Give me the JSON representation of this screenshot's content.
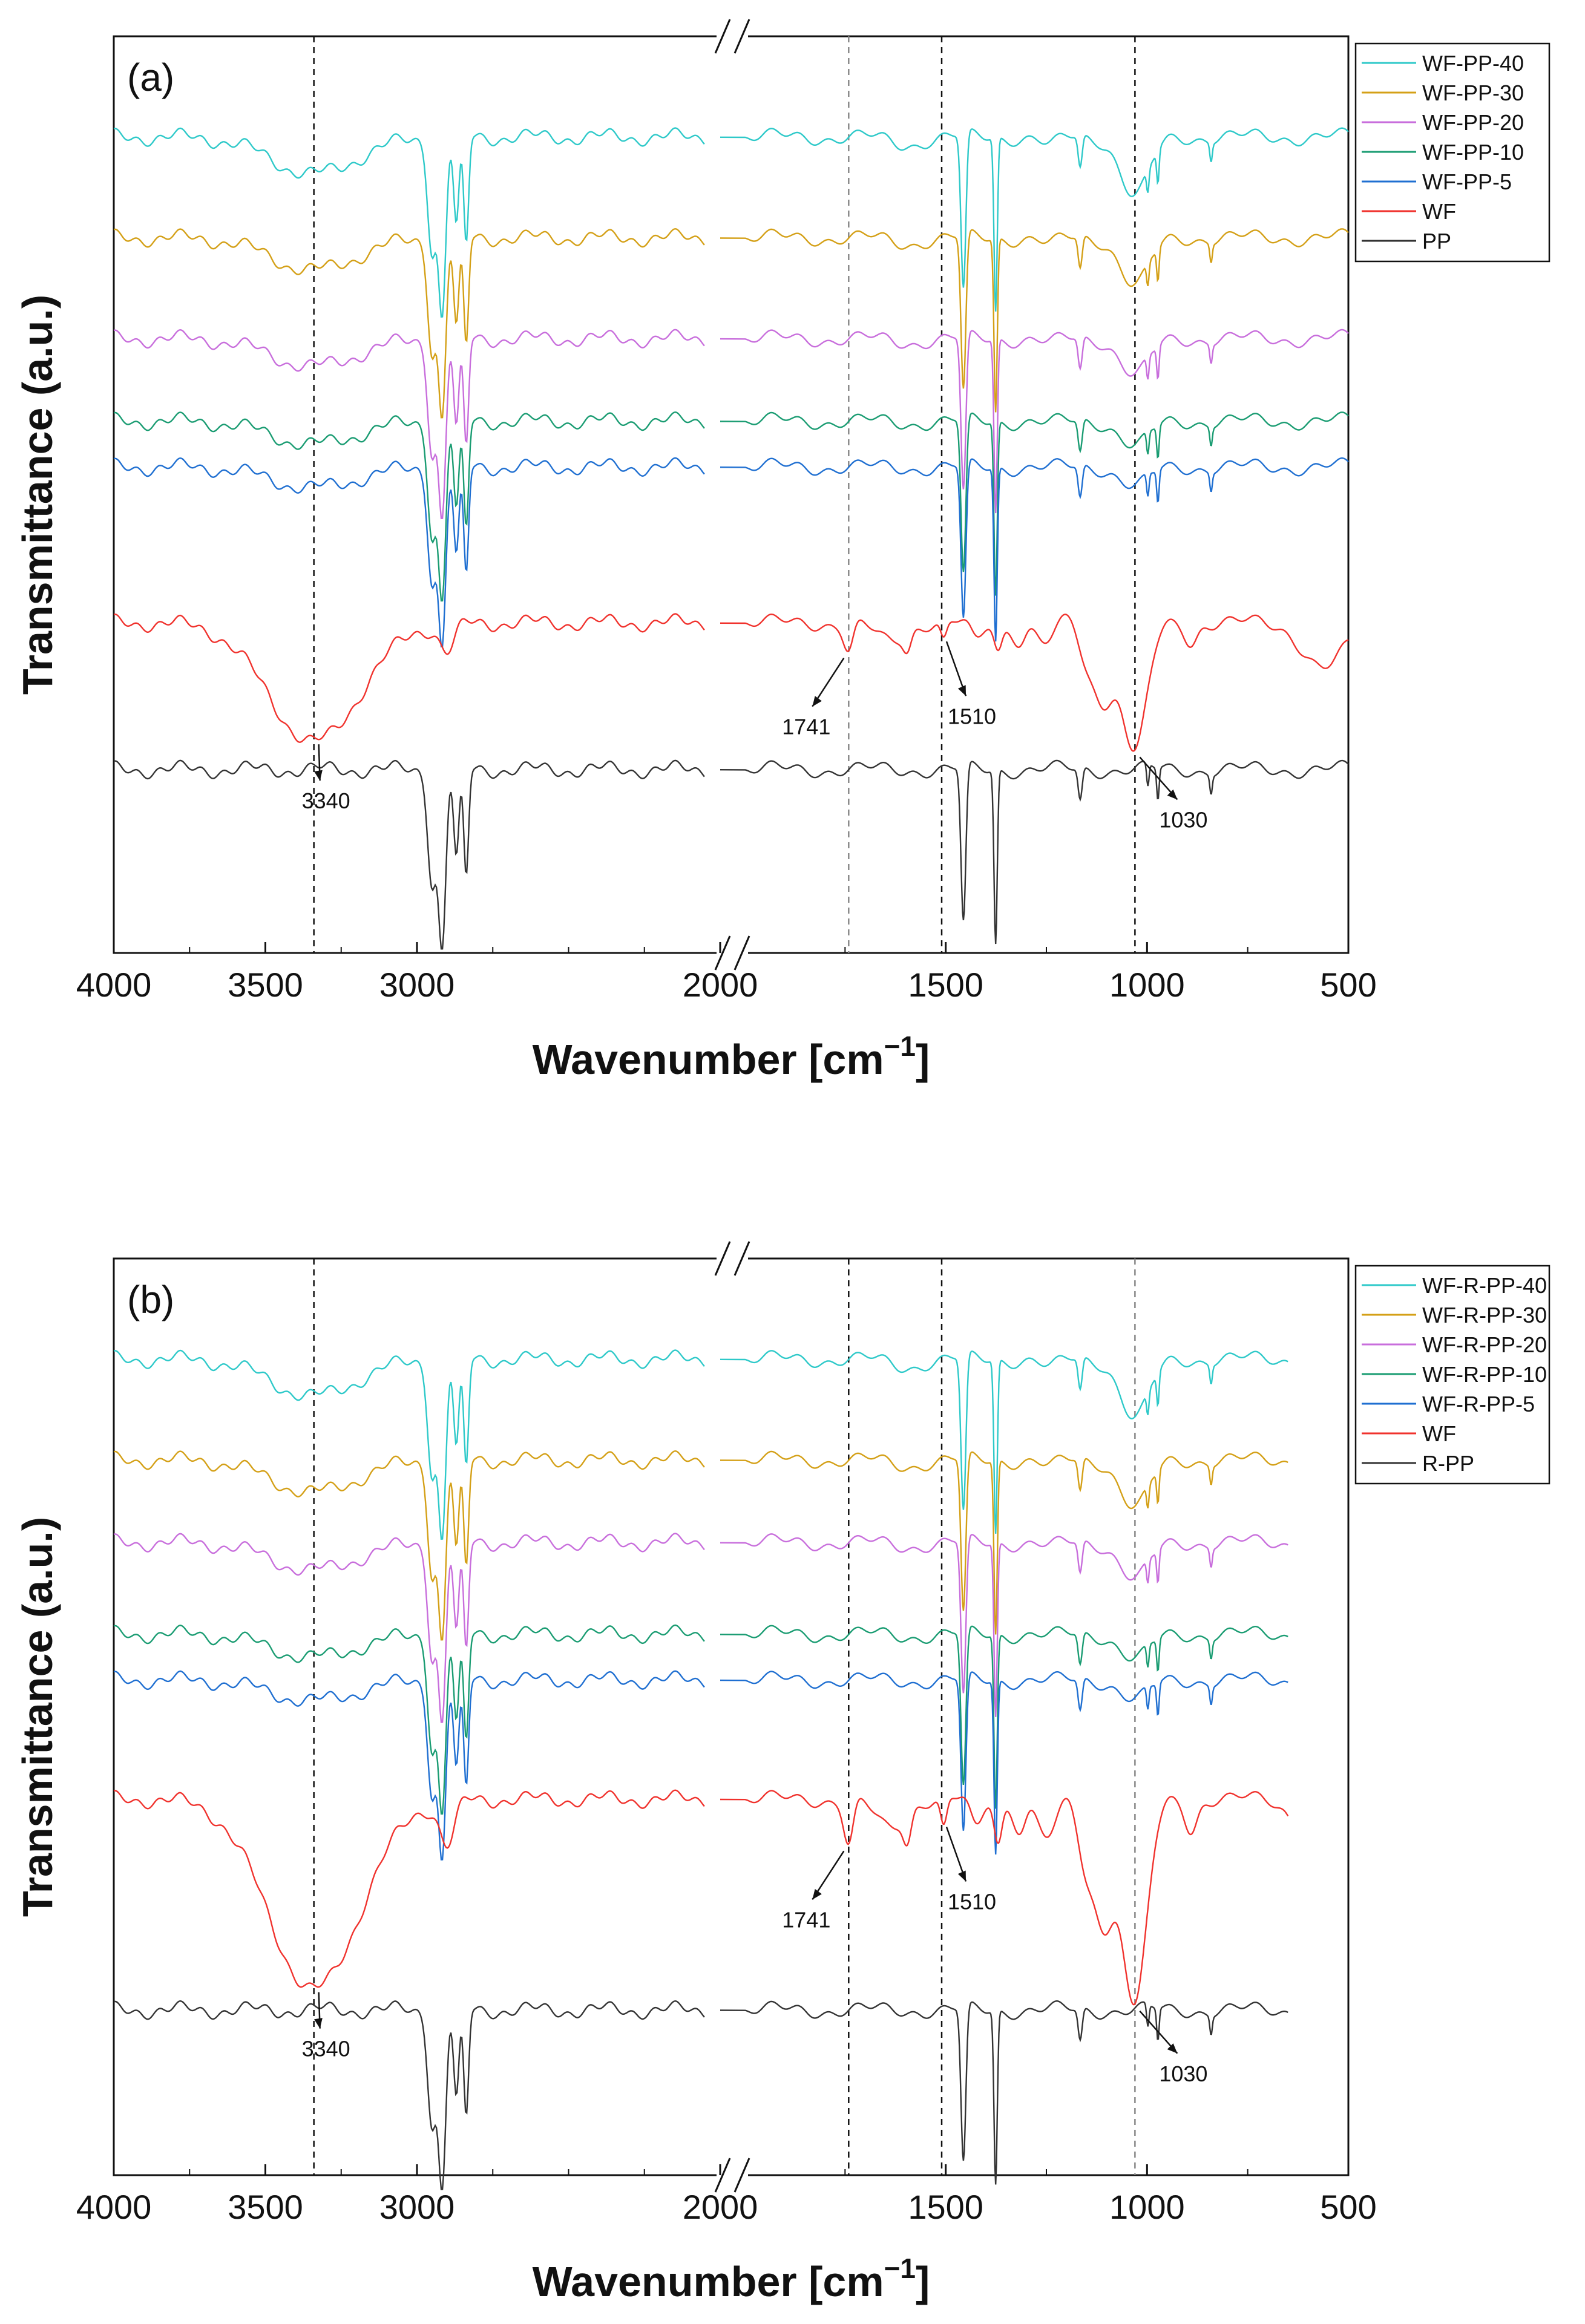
{
  "chart_data": [
    {
      "type": "line",
      "panel_label": "(a)",
      "xlabel": "Wavenumber [cm",
      "xlabel_exponent": "−1",
      "xlabel_close": "]",
      "ylabel": "Transmittance (a.u.)",
      "x_axis_reversed": true,
      "x_breaks": [
        2050,
        2000
      ],
      "x_segments": [
        [
          4000,
          2000
        ],
        [
          2000,
          500
        ]
      ],
      "xticks": [
        4000,
        3500,
        3000,
        2000,
        1500,
        1000,
        500
      ],
      "xtick_labels": [
        "4000",
        "3500",
        "3000",
        "2000",
        "1500",
        "1000",
        "500"
      ],
      "reference_lines": [
        3340,
        1741,
        1510,
        1030
      ],
      "legend_position": "top-right, outside",
      "series": [
        {
          "name": "WF-PP-40",
          "color": "#2ec9c9",
          "baseline": 0.89,
          "x_end": 500
        },
        {
          "name": "WF-PP-30",
          "color": "#d4a017",
          "baseline": 0.78,
          "x_end": 500
        },
        {
          "name": "WF-PP-20",
          "color": "#c86edc",
          "baseline": 0.67,
          "x_end": 500
        },
        {
          "name": "WF-PP-10",
          "color": "#1a9c72",
          "baseline": 0.58,
          "x_end": 500
        },
        {
          "name": "WF-PP-5",
          "color": "#1f6fd1",
          "baseline": 0.53,
          "x_end": 500
        },
        {
          "name": "WF",
          "color": "#f0322d",
          "baseline": 0.36,
          "x_end": 500
        },
        {
          "name": "PP",
          "color": "#333333",
          "baseline": 0.2,
          "x_end": 500
        }
      ],
      "annotations": [
        {
          "text": "3340",
          "x": 3340
        },
        {
          "text": "1741",
          "x": 1741
        },
        {
          "text": "1510",
          "x": 1510
        },
        {
          "text": "1030",
          "x": 1030
        }
      ]
    },
    {
      "type": "line",
      "panel_label": "(b)",
      "xlabel": "Wavenumber [cm",
      "xlabel_exponent": "−1",
      "xlabel_close": "]",
      "ylabel": "Transmittance (a.u.)",
      "x_axis_reversed": true,
      "x_breaks": [
        2050,
        2000
      ],
      "x_segments": [
        [
          4000,
          2000
        ],
        [
          2000,
          500
        ]
      ],
      "xticks": [
        4000,
        3500,
        3000,
        2000,
        1500,
        1000,
        500
      ],
      "xtick_labels": [
        "4000",
        "3500",
        "3000",
        "2000",
        "1500",
        "1000",
        "500"
      ],
      "reference_lines": [
        3340,
        1741,
        1510,
        1030
      ],
      "legend_position": "top-right, outside",
      "series": [
        {
          "name": "WF-R-PP-40",
          "color": "#2ec9c9",
          "baseline": 0.89,
          "x_end": 650
        },
        {
          "name": "WF-R-PP-30",
          "color": "#d4a017",
          "baseline": 0.78,
          "x_end": 650
        },
        {
          "name": "WF-R-PP-20",
          "color": "#c86edc",
          "baseline": 0.69,
          "x_end": 650
        },
        {
          "name": "WF-R-PP-10",
          "color": "#1a9c72",
          "baseline": 0.59,
          "x_end": 650
        },
        {
          "name": "WF-R-PP-5",
          "color": "#1f6fd1",
          "baseline": 0.54,
          "x_end": 650
        },
        {
          "name": "WF",
          "color": "#f0322d",
          "baseline": 0.41,
          "x_end": 650
        },
        {
          "name": "R-PP",
          "color": "#333333",
          "baseline": 0.18,
          "x_end": 650
        }
      ],
      "annotations": [
        {
          "text": "3340",
          "x": 3340
        },
        {
          "text": "1741",
          "x": 1741
        },
        {
          "text": "1510",
          "x": 1510
        },
        {
          "text": "1030",
          "x": 1030
        }
      ]
    }
  ]
}
